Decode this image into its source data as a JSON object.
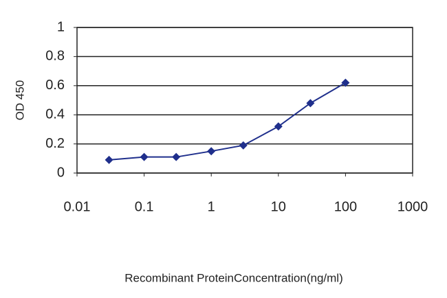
{
  "chart_data": {
    "type": "line",
    "x_label": "Recombinant ProteinConcentration(ng/ml)",
    "y_label": "OD 450",
    "x": [
      0.03,
      0.1,
      0.3,
      1,
      3,
      10,
      30,
      100
    ],
    "values": [
      0.09,
      0.11,
      0.11,
      0.15,
      0.19,
      0.32,
      0.48,
      0.62
    ],
    "color": "#1f2f8c",
    "x_scale": "log",
    "xlim": [
      0.01,
      1000
    ],
    "xticks": [
      0.01,
      0.1,
      1,
      10,
      100,
      1000
    ],
    "ylim": [
      0,
      1
    ],
    "yticks": [
      0,
      0.2,
      0.4,
      0.6,
      0.8,
      1
    ],
    "grid": true
  }
}
